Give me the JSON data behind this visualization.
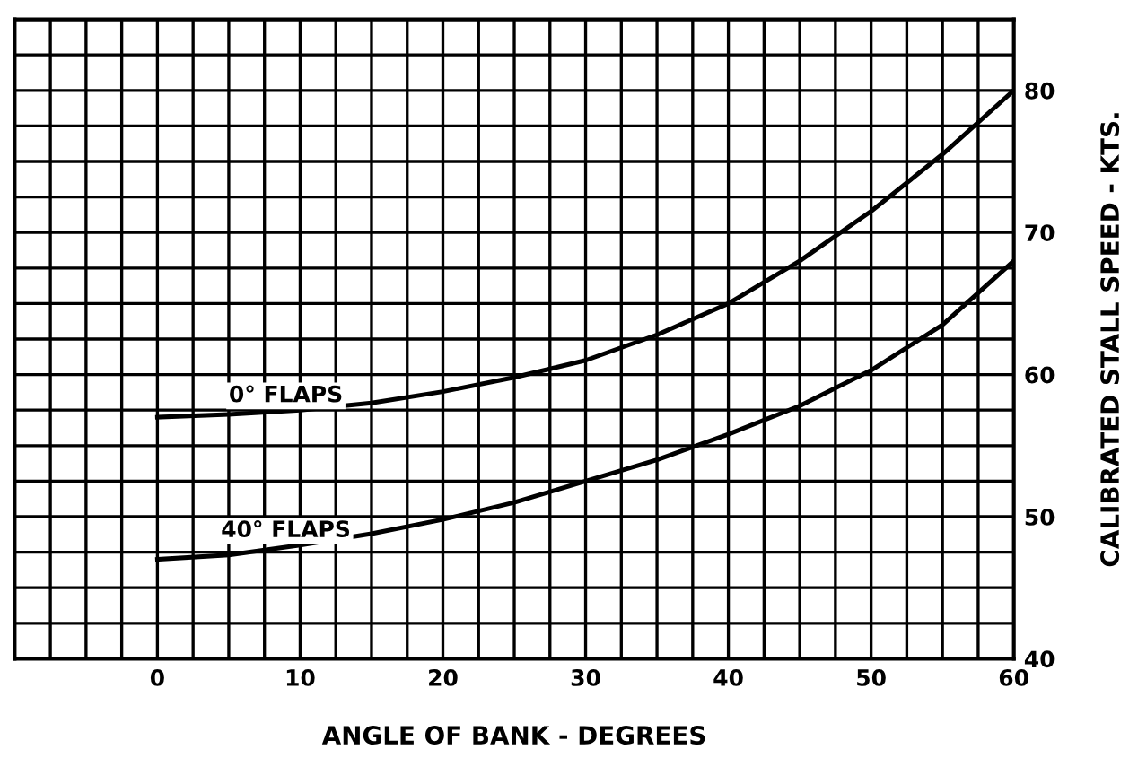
{
  "chart_data": {
    "type": "line",
    "xlabel": "ANGLE OF BANK - DEGREES",
    "ylabel": "CALIBRATED STALL SPEED - KTS.",
    "series": [
      {
        "name": "0° FLAPS",
        "color": "#000000",
        "x": [
          0,
          5,
          10,
          15,
          20,
          25,
          30,
          35,
          40,
          45,
          50,
          55,
          60
        ],
        "values": [
          57,
          57.2,
          57.5,
          58,
          58.8,
          59.8,
          61,
          62.8,
          65,
          68,
          71.5,
          75.5,
          80
        ]
      },
      {
        "name": "40° FLAPS",
        "color": "#000000",
        "x": [
          0,
          5,
          10,
          15,
          20,
          25,
          30,
          35,
          40,
          45,
          50,
          55,
          60
        ],
        "values": [
          47,
          47.3,
          48,
          48.8,
          49.8,
          51,
          52.5,
          54,
          55.8,
          57.8,
          60.3,
          63.5,
          68
        ]
      }
    ],
    "xlim": [
      -10,
      60
    ],
    "ylim": [
      40,
      85
    ],
    "xticks": [
      {
        "value": -7.5,
        "label": null
      },
      {
        "value": -5,
        "label": null
      },
      {
        "value": -2.5,
        "label": null
      },
      0,
      {
        "value": 2.5,
        "label": null
      },
      {
        "value": 5,
        "label": null
      },
      {
        "value": 7.5,
        "label": null
      },
      10,
      {
        "value": 12.5,
        "label": null
      },
      {
        "value": 15,
        "label": null
      },
      {
        "value": 17.5,
        "label": null
      },
      20,
      {
        "value": 22.5,
        "label": null
      },
      {
        "value": 25,
        "label": null
      },
      {
        "value": 27.5,
        "label": null
      },
      30,
      {
        "value": 32.5,
        "label": null
      },
      {
        "value": 35,
        "label": null
      },
      {
        "value": 37.5,
        "label": null
      },
      40,
      {
        "value": 42.5,
        "label": null
      },
      {
        "value": 45,
        "label": null
      },
      {
        "value": 47.5,
        "label": null
      },
      50,
      {
        "value": 52.5,
        "label": null
      },
      {
        "value": 55,
        "label": null
      },
      {
        "value": 57.5,
        "label": null
      },
      60
    ],
    "yticks": [
      40,
      {
        "value": 42.5,
        "label": null
      },
      {
        "value": 45,
        "label": null
      },
      {
        "value": 47.5,
        "label": null
      },
      50,
      {
        "value": 52.5,
        "label": null
      },
      {
        "value": 55,
        "label": null
      },
      {
        "value": 57.5,
        "label": null
      },
      60,
      {
        "value": 62.5,
        "label": null
      },
      {
        "value": 65,
        "label": null
      },
      {
        "value": 67.5,
        "label": null
      },
      70,
      {
        "value": 72.5,
        "label": null
      },
      {
        "value": 75,
        "label": null
      },
      {
        "value": 77.5,
        "label": null
      },
      80,
      {
        "value": 82.5,
        "label": null
      }
    ],
    "grid": true,
    "legend": false,
    "marker": "none",
    "line_style": "solid"
  }
}
